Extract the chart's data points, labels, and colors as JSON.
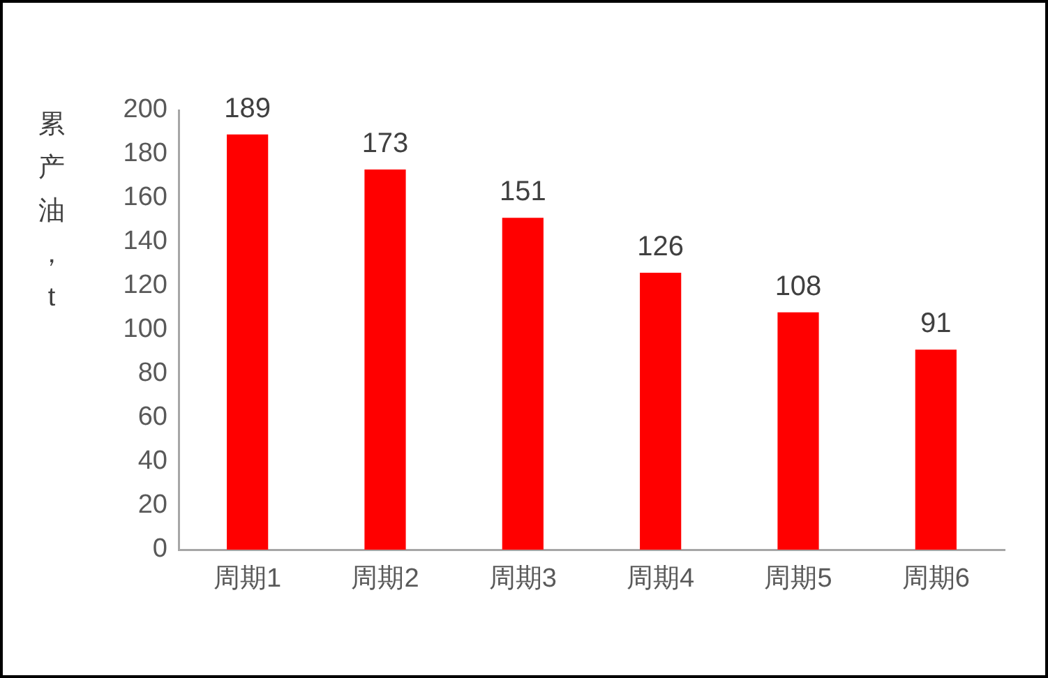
{
  "chart_data": {
    "type": "bar",
    "ylabel": "累产油，t",
    "categories": [
      "周期1",
      "周期2",
      "周期3",
      "周期4",
      "周期5",
      "周期6"
    ],
    "values": [
      189,
      173,
      151,
      126,
      108,
      91
    ],
    "color": "#ff0000",
    "ylim": [
      0,
      200
    ],
    "yticks": [
      0,
      20,
      40,
      60,
      80,
      100,
      120,
      140,
      160,
      180,
      200
    ],
    "grid": false,
    "legend": false,
    "data_labels": true
  }
}
